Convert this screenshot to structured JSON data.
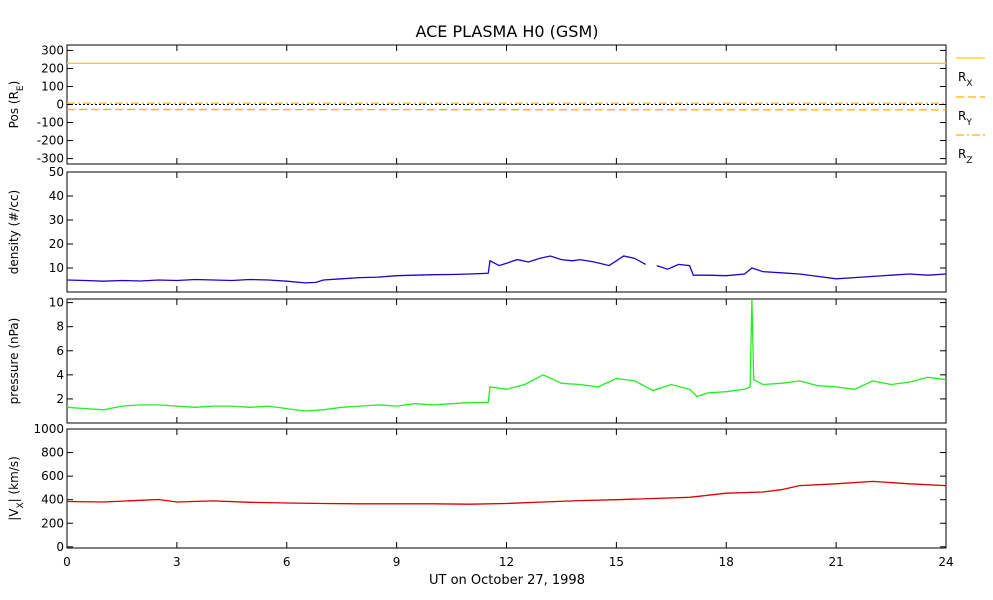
{
  "chart_data": {
    "title": "ACE PLASMA H0 (GSM)",
    "xlabel": "UT on October 27, 1998",
    "type": "line",
    "x_axis": {
      "range": [
        0,
        24
      ],
      "ticks": [
        "0",
        "3",
        "6",
        "9",
        "12",
        "15",
        "18",
        "21",
        "24"
      ],
      "tick_values": [
        0,
        3,
        6,
        9,
        12,
        15,
        18,
        21,
        24
      ],
      "units": "hours UT"
    },
    "panels": [
      {
        "id": "pos",
        "ylabel_main": "Pos (R",
        "ylabel_sub": "E",
        "ylabel_end": ")",
        "ylim": [
          -330,
          330
        ],
        "yticks": [
          -300,
          -200,
          -100,
          0,
          100,
          200,
          300
        ],
        "yticklabels": [
          "-300",
          "-200",
          "-100",
          "0",
          "100",
          "200",
          "300"
        ],
        "zero_line": true,
        "series": [
          {
            "name": "R",
            "sub": "X",
            "color": "#ffcc00",
            "style": "solid",
            "points": [
              [
                0,
                228
              ],
              [
                24,
                228
              ]
            ]
          },
          {
            "name": "R",
            "sub": "Y",
            "color": "#ffb000",
            "style": "dashed",
            "points": [
              [
                0,
                -28
              ],
              [
                24,
                -30
              ]
            ]
          },
          {
            "name": "R",
            "sub": "Z",
            "color": "#ffb000",
            "style": "dashdot",
            "points": [
              [
                0,
                8
              ],
              [
                24,
                8
              ]
            ]
          }
        ]
      },
      {
        "id": "density",
        "ylabel_main": "density (#/cc)",
        "ylim": [
          0,
          50
        ],
        "yticks": [
          0,
          10,
          20,
          30,
          40,
          50
        ],
        "yticklabels": [
          "",
          "10",
          "20",
          "30",
          "40",
          "50"
        ],
        "series": [
          {
            "name": "",
            "color": "#2200cc",
            "points": [
              [
                0,
                5
              ],
              [
                0.5,
                4.8
              ],
              [
                1,
                4.5
              ],
              [
                1.5,
                4.8
              ],
              [
                2,
                4.6
              ],
              [
                2.5,
                5
              ],
              [
                3,
                4.8
              ],
              [
                3.5,
                5.2
              ],
              [
                4,
                5
              ],
              [
                4.5,
                4.8
              ],
              [
                5,
                5.2
              ],
              [
                5.5,
                5
              ],
              [
                6,
                4.5
              ],
              [
                6.5,
                3.8
              ],
              [
                6.8,
                4
              ],
              [
                7,
                5
              ],
              [
                7.5,
                5.5
              ],
              [
                8,
                6
              ],
              [
                8.5,
                6.2
              ],
              [
                9,
                6.8
              ],
              [
                9.5,
                7
              ],
              [
                10,
                7.2
              ],
              [
                10.5,
                7.3
              ],
              [
                11,
                7.5
              ],
              [
                11.5,
                7.8
              ],
              [
                11.55,
                13
              ],
              [
                11.8,
                11
              ],
              [
                12,
                12
              ],
              [
                12.3,
                13.5
              ],
              [
                12.6,
                12.5
              ],
              [
                12.9,
                14
              ],
              [
                13.2,
                15
              ],
              [
                13.5,
                13.5
              ],
              [
                13.8,
                13
              ],
              [
                14,
                13.5
              ],
              [
                14.4,
                12.5
              ],
              [
                14.8,
                11
              ],
              [
                15,
                13
              ],
              [
                15.2,
                15
              ],
              [
                15.5,
                14
              ],
              [
                15.8,
                11.5
              ],
              [
                16,
                null
              ],
              [
                16.1,
                11
              ],
              [
                16.4,
                9.5
              ],
              [
                16.7,
                11.5
              ],
              [
                17,
                11
              ],
              [
                17.1,
                7
              ],
              [
                17.5,
                7
              ],
              [
                18,
                6.8
              ],
              [
                18.5,
                7.5
              ],
              [
                18.7,
                10
              ],
              [
                19,
                8.5
              ],
              [
                19.5,
                8
              ],
              [
                20,
                7.5
              ],
              [
                20.5,
                6.5
              ],
              [
                21,
                5.5
              ],
              [
                21.5,
                6
              ],
              [
                22,
                6.5
              ],
              [
                22.5,
                7
              ],
              [
                23,
                7.5
              ],
              [
                23.5,
                7
              ],
              [
                24,
                7.5
              ]
            ]
          }
        ]
      },
      {
        "id": "pressure",
        "ylabel_main": "pressure (nPa)",
        "ylim": [
          0,
          10.3
        ],
        "yticks": [
          0,
          2,
          4,
          6,
          8,
          10
        ],
        "yticklabels": [
          "",
          "2",
          "4",
          "6",
          "8",
          "10"
        ],
        "series": [
          {
            "name": "",
            "color": "#22ee22",
            "points": [
              [
                0,
                1.3
              ],
              [
                0.5,
                1.2
              ],
              [
                1,
                1.1
              ],
              [
                1.5,
                1.4
              ],
              [
                2,
                1.5
              ],
              [
                2.5,
                1.5
              ],
              [
                3,
                1.4
              ],
              [
                3.5,
                1.3
              ],
              [
                4,
                1.4
              ],
              [
                4.5,
                1.4
              ],
              [
                5,
                1.3
              ],
              [
                5.5,
                1.4
              ],
              [
                6,
                1.2
              ],
              [
                6.5,
                1.0
              ],
              [
                7,
                1.1
              ],
              [
                7.5,
                1.3
              ],
              [
                8,
                1.4
              ],
              [
                8.5,
                1.5
              ],
              [
                9,
                1.4
              ],
              [
                9.5,
                1.6
              ],
              [
                10,
                1.5
              ],
              [
                10.5,
                1.6
              ],
              [
                11,
                1.7
              ],
              [
                11.5,
                1.7
              ],
              [
                11.55,
                3.0
              ],
              [
                12,
                2.8
              ],
              [
                12.5,
                3.2
              ],
              [
                13,
                4.0
              ],
              [
                13.5,
                3.3
              ],
              [
                14,
                3.2
              ],
              [
                14.5,
                3.0
              ],
              [
                15,
                3.7
              ],
              [
                15.5,
                3.5
              ],
              [
                16,
                2.7
              ],
              [
                16.5,
                3.2
              ],
              [
                17,
                2.8
              ],
              [
                17.2,
                2.2
              ],
              [
                17.5,
                2.5
              ],
              [
                18,
                2.6
              ],
              [
                18.5,
                2.8
              ],
              [
                18.65,
                3.0
              ],
              [
                18.7,
                10.3
              ],
              [
                18.75,
                3.6
              ],
              [
                19,
                3.2
              ],
              [
                19.5,
                3.3
              ],
              [
                20,
                3.5
              ],
              [
                20.5,
                3.1
              ],
              [
                21,
                3.0
              ],
              [
                21.5,
                2.8
              ],
              [
                22,
                3.5
              ],
              [
                22.5,
                3.2
              ],
              [
                23,
                3.4
              ],
              [
                23.5,
                3.8
              ],
              [
                24,
                3.6
              ]
            ]
          }
        ]
      },
      {
        "id": "vx",
        "ylabel_main": "|V",
        "ylabel_sub": "X",
        "ylabel_end": "| (km/s)",
        "ylim": [
          -10,
          1000
        ],
        "yticks": [
          0,
          200,
          400,
          600,
          800,
          1000
        ],
        "yticklabels": [
          "0",
          "200",
          "400",
          "600",
          "800",
          "1000"
        ],
        "series": [
          {
            "name": "",
            "color": "#dd0000",
            "points": [
              [
                0,
                385
              ],
              [
                1,
                380
              ],
              [
                2,
                395
              ],
              [
                2.5,
                402
              ],
              [
                3,
                380
              ],
              [
                4,
                390
              ],
              [
                5,
                378
              ],
              [
                6,
                372
              ],
              [
                7,
                368
              ],
              [
                8,
                365
              ],
              [
                9,
                365
              ],
              [
                10,
                365
              ],
              [
                11,
                362
              ],
              [
                12,
                368
              ],
              [
                13,
                380
              ],
              [
                14,
                392
              ],
              [
                15,
                400
              ],
              [
                16,
                410
              ],
              [
                17,
                420
              ],
              [
                18,
                455
              ],
              [
                19,
                465
              ],
              [
                19.5,
                485
              ],
              [
                20,
                520
              ],
              [
                21,
                535
              ],
              [
                22,
                555
              ],
              [
                23,
                535
              ],
              [
                24,
                520
              ]
            ]
          }
        ]
      }
    ]
  }
}
